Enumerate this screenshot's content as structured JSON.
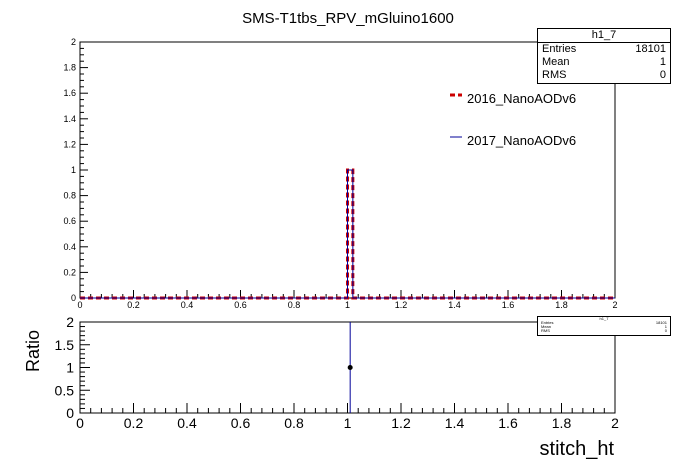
{
  "chart_data": [
    {
      "type": "histogram",
      "title": "SMS-T1tbs_RPV_mGluino1600",
      "xlim": [
        0,
        2
      ],
      "ylim": [
        0,
        2
      ],
      "x_ticks": [
        "0",
        "0.2",
        "0.4",
        "0.6",
        "0.8",
        "1",
        "1.2",
        "1.4",
        "1.6",
        "1.8",
        "2"
      ],
      "y_ticks": [
        "0",
        "0.2",
        "0.4",
        "0.6",
        "0.8",
        "1",
        "1.2",
        "1.4",
        "1.6",
        "1.8",
        "2"
      ],
      "bin_width": 0.02,
      "series": [
        {
          "name": "2016_NanoAODv6",
          "color": "#cc0000",
          "style": "dashed",
          "bins": [
            {
              "x_low": 1.0,
              "x_high": 1.02,
              "value": 1
            }
          ]
        },
        {
          "name": "2017_NanoAODv6",
          "color": "#000099",
          "style": "solid",
          "bins": [
            {
              "x_low": 1.0,
              "x_high": 1.02,
              "value": 1
            }
          ]
        }
      ],
      "stats": {
        "name": "h1_7",
        "rows": [
          {
            "label": "Entries",
            "value": "18101"
          },
          {
            "label": "Mean",
            "value": "1"
          },
          {
            "label": "RMS",
            "value": "0"
          }
        ]
      }
    },
    {
      "type": "scatter",
      "ylabel": "Ratio",
      "xlabel": "stitch_ht",
      "xlim": [
        0,
        2
      ],
      "ylim": [
        0,
        2
      ],
      "x_ticks": [
        "0",
        "0.2",
        "0.4",
        "0.6",
        "0.8",
        "1",
        "1.2",
        "1.4",
        "1.6",
        "1.8",
        "2"
      ],
      "y_ticks": [
        "0",
        "0.5",
        "1",
        "1.5",
        "2"
      ],
      "points": [
        {
          "x": 1.01,
          "y": 1,
          "yerr_low": 1,
          "yerr_high": 1
        }
      ],
      "stats": {
        "name": "h1_7",
        "rows": [
          {
            "label": "Entries",
            "value": "18101"
          },
          {
            "label": "Mean",
            "value": "1"
          },
          {
            "label": "RMS",
            "value": "0"
          }
        ]
      }
    }
  ]
}
